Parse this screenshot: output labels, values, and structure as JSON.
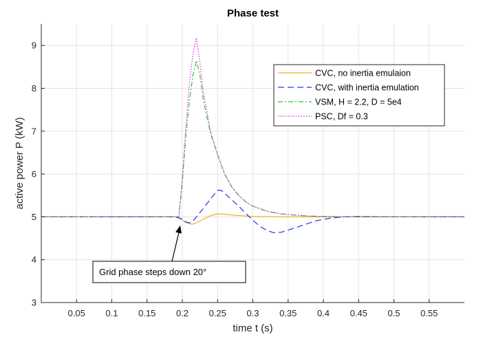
{
  "chart_data": {
    "type": "line",
    "title": "Phase test",
    "xlabel": "time t (s)",
    "ylabel": "active power P (kW)",
    "xlim": [
      0,
      0.6
    ],
    "ylim": [
      3,
      9.5
    ],
    "xticks": [
      0.05,
      0.1,
      0.15,
      0.2,
      0.25,
      0.3,
      0.35,
      0.4,
      0.45,
      0.5,
      0.55
    ],
    "xtick_labels": [
      "0.05",
      "0.1",
      "0.15",
      "0.2",
      "0.25",
      "0.3",
      "0.35",
      "0.4",
      "0.45",
      "0.5",
      "0.55"
    ],
    "yticks": [
      3,
      4,
      5,
      6,
      7,
      8,
      9
    ],
    "ytick_labels": [
      "3",
      "4",
      "5",
      "6",
      "7",
      "8",
      "9"
    ],
    "grid": true,
    "legend_position": "top-right",
    "series": [
      {
        "name": "CVC, no inertia emulaion",
        "color": "#EDB120",
        "dash": "solid",
        "x": [
          0,
          0.19,
          0.195,
          0.2,
          0.205,
          0.21,
          0.215,
          0.22,
          0.23,
          0.24,
          0.25,
          0.26,
          0.28,
          0.3,
          0.35,
          0.4,
          0.6
        ],
        "y": [
          5.0,
          5.0,
          4.98,
          4.92,
          4.87,
          4.84,
          4.83,
          4.86,
          4.95,
          5.03,
          5.07,
          5.06,
          5.03,
          5.01,
          5.0,
          5.0,
          5.0
        ]
      },
      {
        "name": "CVC, with inertia emulation",
        "color": "#1F35F0",
        "dash": "dashed",
        "x": [
          0,
          0.19,
          0.2,
          0.205,
          0.21,
          0.215,
          0.22,
          0.23,
          0.24,
          0.25,
          0.255,
          0.26,
          0.27,
          0.28,
          0.29,
          0.3,
          0.31,
          0.32,
          0.33,
          0.34,
          0.35,
          0.37,
          0.39,
          0.41,
          0.43,
          0.45,
          0.5,
          0.6
        ],
        "y": [
          5.0,
          5.0,
          4.95,
          4.88,
          4.86,
          4.9,
          5.0,
          5.2,
          5.42,
          5.62,
          5.62,
          5.55,
          5.4,
          5.25,
          5.08,
          4.92,
          4.78,
          4.68,
          4.63,
          4.64,
          4.69,
          4.8,
          4.91,
          4.97,
          5.0,
          5.01,
          5.0,
          5.0
        ]
      },
      {
        "name": "VSM, H = 2.2, D = 5e4",
        "color": "#22C922",
        "dash": "dashdot",
        "x": [
          0,
          0.195,
          0.2,
          0.205,
          0.21,
          0.215,
          0.22,
          0.225,
          0.23,
          0.24,
          0.25,
          0.26,
          0.27,
          0.28,
          0.29,
          0.3,
          0.32,
          0.34,
          0.36,
          0.38,
          0.4,
          0.45,
          0.6
        ],
        "y": [
          5.0,
          5.0,
          5.8,
          6.9,
          7.7,
          8.3,
          8.65,
          8.3,
          7.7,
          6.95,
          6.45,
          6.0,
          5.7,
          5.5,
          5.35,
          5.25,
          5.13,
          5.07,
          5.04,
          5.02,
          5.01,
          5.0,
          5.0
        ]
      },
      {
        "name": "PSC, Df = 0.3",
        "color": "#E020E0",
        "dash": "dotted",
        "x": [
          0,
          0.195,
          0.2,
          0.205,
          0.21,
          0.215,
          0.22,
          0.225,
          0.23,
          0.24,
          0.25,
          0.26,
          0.27,
          0.28,
          0.29,
          0.3,
          0.32,
          0.34,
          0.36,
          0.38,
          0.4,
          0.45,
          0.6
        ],
        "y": [
          5.0,
          5.0,
          5.9,
          7.1,
          8.1,
          8.8,
          9.18,
          8.6,
          7.9,
          7.0,
          6.45,
          6.0,
          5.7,
          5.5,
          5.35,
          5.25,
          5.13,
          5.07,
          5.04,
          5.02,
          5.01,
          5.0,
          5.0
        ]
      }
    ],
    "annotation": {
      "text": "Grid phase steps down 20°",
      "arrow_to": [
        0.197,
        4.8
      ]
    }
  }
}
